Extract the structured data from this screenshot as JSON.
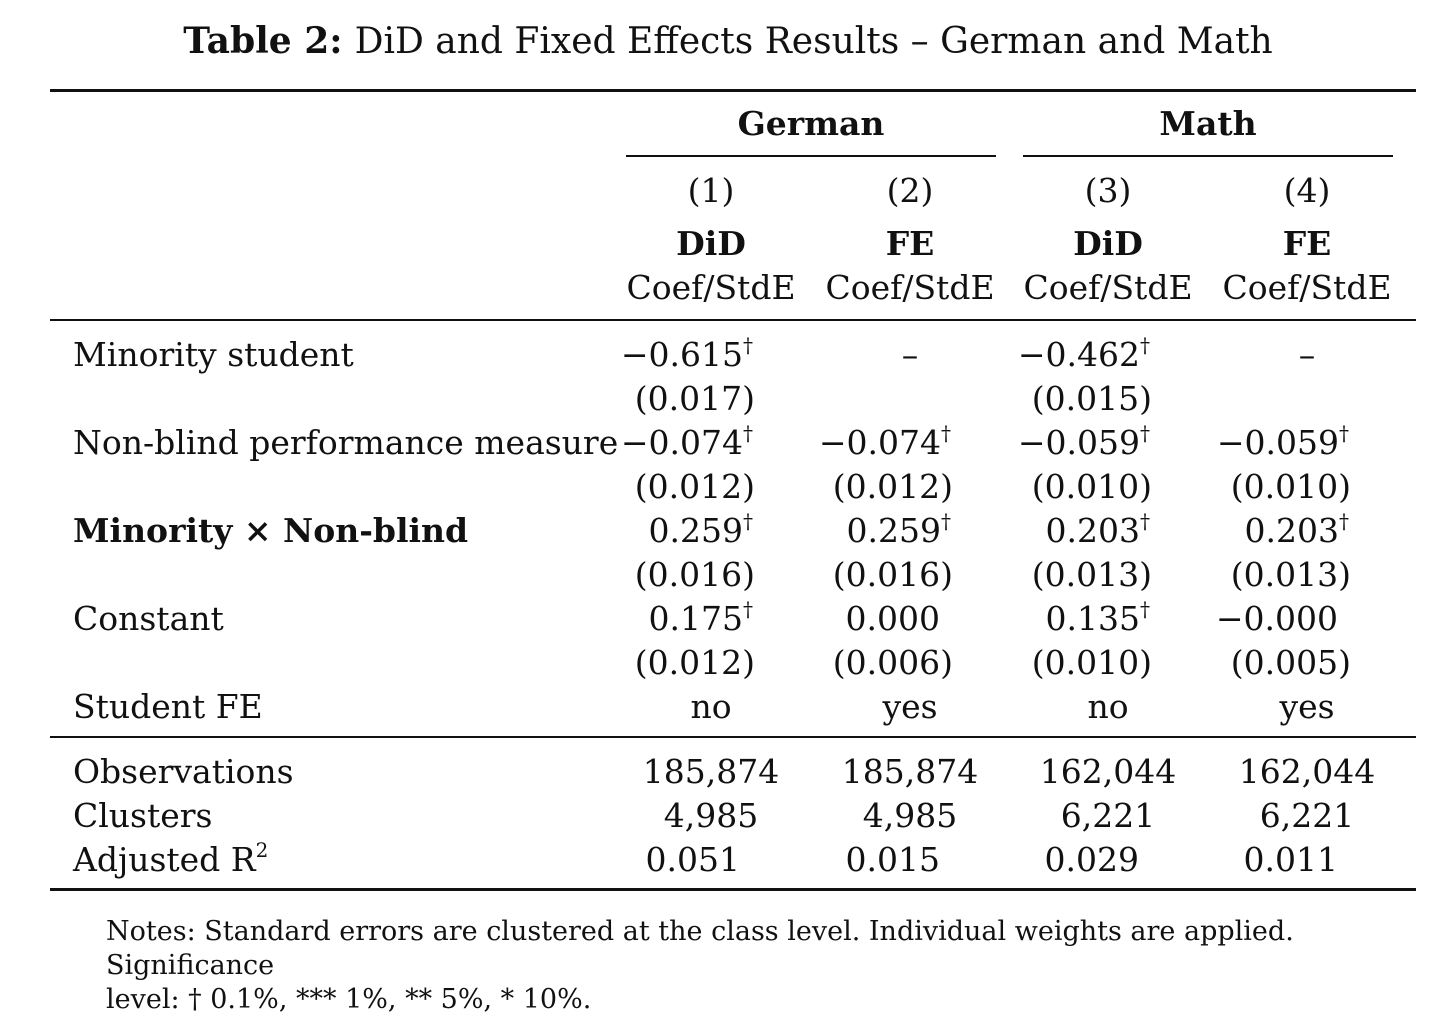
{
  "caption": {
    "label": "Table 2:",
    "text": "DiD and Fixed Effects Results – German and Math"
  },
  "groups": [
    {
      "name": "German"
    },
    {
      "name": "Math"
    }
  ],
  "columns": [
    {
      "num": "(1)",
      "model": "DiD",
      "sub": "Coef/StdE"
    },
    {
      "num": "(2)",
      "model": "FE",
      "sub": "Coef/StdE"
    },
    {
      "num": "(3)",
      "model": "DiD",
      "sub": "Coef/StdE"
    },
    {
      "num": "(4)",
      "model": "FE",
      "sub": "Coef/StdE"
    }
  ],
  "dagger": "†",
  "rows": {
    "minority": {
      "label": "Minority student",
      "coef": [
        "−0.615",
        "–",
        "−0.462",
        "–"
      ],
      "se": [
        "(0.017)",
        "",
        "(0.015)",
        ""
      ]
    },
    "nonblind": {
      "label": "Non-blind performance measure",
      "coef": [
        "−0.074",
        "−0.074",
        "−0.059",
        "−0.059"
      ],
      "se": [
        "(0.012)",
        "(0.012)",
        "(0.010)",
        "(0.010)"
      ]
    },
    "interaction": {
      "label": "Minority × Non-blind",
      "coef": [
        "0.259",
        "0.259",
        "0.203",
        "0.203"
      ],
      "se": [
        "(0.016)",
        "(0.016)",
        "(0.013)",
        "(0.013)"
      ]
    },
    "constant": {
      "label": "Constant",
      "coef": [
        "0.175",
        "0.000",
        "0.135",
        "−0.000"
      ],
      "se": [
        "(0.012)",
        "(0.006)",
        "(0.010)",
        "(0.005)"
      ]
    },
    "studentfe": {
      "label": "Student FE",
      "values": [
        "no",
        "yes",
        "no",
        "yes"
      ]
    }
  },
  "stats": {
    "observations": {
      "label": "Observations",
      "values": [
        "185,874",
        "185,874",
        "162,044",
        "162,044"
      ]
    },
    "clusters": {
      "label": "Clusters",
      "values": [
        "4,985",
        "4,985",
        "6,221",
        "6,221"
      ]
    },
    "adjr2": {
      "label": "Adjusted R",
      "sup": "2",
      "values": [
        "0.051",
        "0.015",
        "0.029",
        "0.011"
      ]
    }
  },
  "notes": {
    "line1": "Notes: Standard errors are clustered at the class level. Individual weights are applied. Significance",
    "line2": "level: † 0.1%, *** 1%, ** 5%, * 10%."
  }
}
